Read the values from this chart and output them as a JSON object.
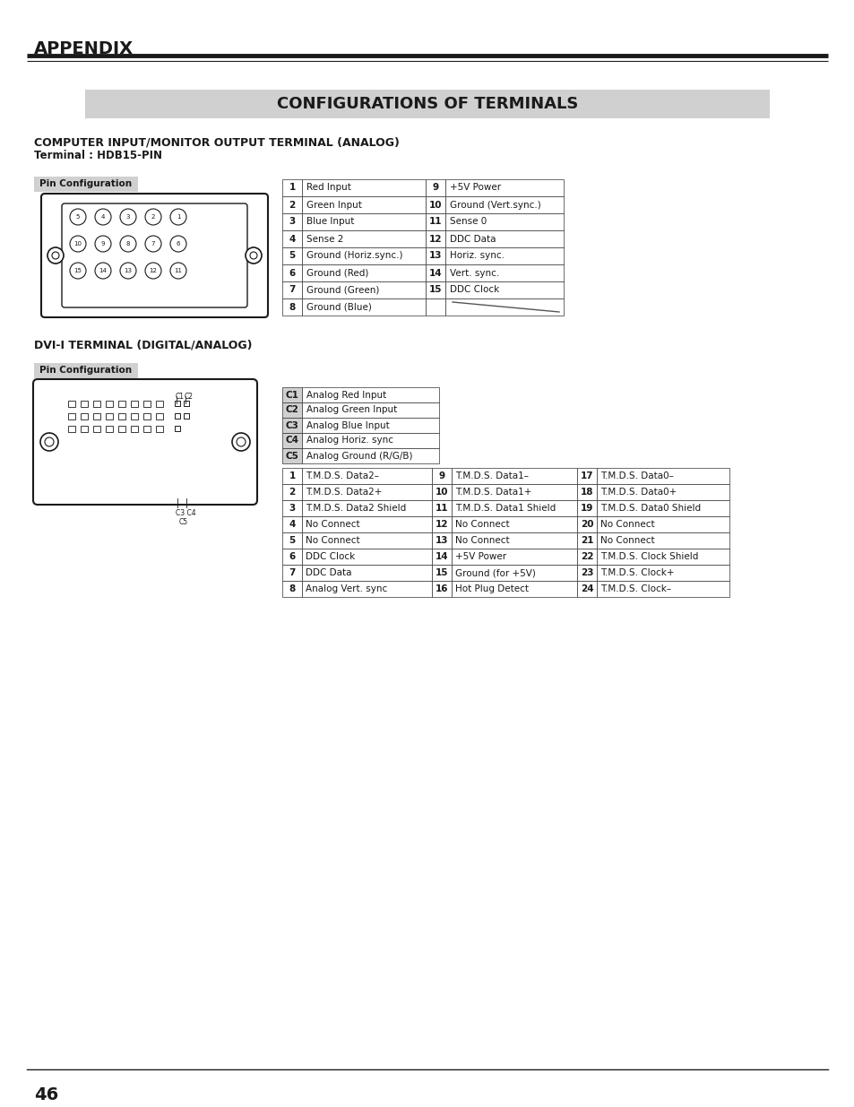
{
  "title_appendix": "APPENDIX",
  "section_title": "CONFIGURATIONS OF TERMINALS",
  "section1_title": "COMPUTER INPUT/MONITOR OUTPUT TERMINAL (ANALOG)",
  "section1_subtitle": "Terminal : HDB15-PIN",
  "pin_config_label": "Pin Configuration",
  "analog_table": {
    "left": [
      [
        "1",
        "Red Input"
      ],
      [
        "2",
        "Green Input"
      ],
      [
        "3",
        "Blue Input"
      ],
      [
        "4",
        "Sense 2"
      ],
      [
        "5",
        "Ground (Horiz.sync.)"
      ],
      [
        "6",
        "Ground (Red)"
      ],
      [
        "7",
        "Ground (Green)"
      ],
      [
        "8",
        "Ground (Blue)"
      ]
    ],
    "right": [
      [
        "9",
        "+5V Power"
      ],
      [
        "10",
        "Ground (Vert.sync.)"
      ],
      [
        "11",
        "Sense 0"
      ],
      [
        "12",
        "DDC Data"
      ],
      [
        "13",
        "Horiz. sync."
      ],
      [
        "14",
        "Vert. sync."
      ],
      [
        "15",
        "DDC Clock"
      ],
      [
        "",
        ""
      ]
    ]
  },
  "section2_title": "DVI-I TERMINAL (DIGITAL/ANALOG)",
  "dvi_analog_table": [
    [
      "C1",
      "Analog Red Input"
    ],
    [
      "C2",
      "Analog Green Input"
    ],
    [
      "C3",
      "Analog Blue Input"
    ],
    [
      "C4",
      "Analog Horiz. sync"
    ],
    [
      "C5",
      "Analog Ground (R/G/B)"
    ]
  ],
  "dvi_main_table": {
    "col1": [
      [
        "1",
        "T.M.D.S. Data2–"
      ],
      [
        "2",
        "T.M.D.S. Data2+"
      ],
      [
        "3",
        "T.M.D.S. Data2 Shield"
      ],
      [
        "4",
        "No Connect"
      ],
      [
        "5",
        "No Connect"
      ],
      [
        "6",
        "DDC Clock"
      ],
      [
        "7",
        "DDC Data"
      ],
      [
        "8",
        "Analog Vert. sync"
      ]
    ],
    "col2": [
      [
        "9",
        "T.M.D.S. Data1–"
      ],
      [
        "10",
        "T.M.D.S. Data1+"
      ],
      [
        "11",
        "T.M.D.S. Data1 Shield"
      ],
      [
        "12",
        "No Connect"
      ],
      [
        "13",
        "No Connect"
      ],
      [
        "14",
        "+5V Power"
      ],
      [
        "15",
        "Ground (for +5V)"
      ],
      [
        "16",
        "Hot Plug Detect"
      ]
    ],
    "col3": [
      [
        "17",
        "T.M.D.S. Data0–"
      ],
      [
        "18",
        "T.M.D.S. Data0+"
      ],
      [
        "19",
        "T.M.D.S. Data0 Shield"
      ],
      [
        "20",
        "No Connect"
      ],
      [
        "21",
        "No Connect"
      ],
      [
        "22",
        "T.M.D.S. Clock Shield"
      ],
      [
        "23",
        "T.M.D.S. Clock+"
      ],
      [
        "24",
        "T.M.D.S. Clock–"
      ]
    ]
  },
  "page_number": "46",
  "bg_color": "#ffffff",
  "header_bg": "#d0d0d0",
  "table_border": "#000000",
  "pin_config_bg": "#d0d0d0"
}
